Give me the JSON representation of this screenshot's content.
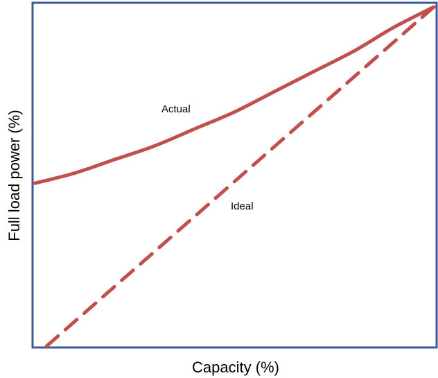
{
  "chart_data": {
    "type": "line",
    "title": "",
    "xlabel": "Capacity (%)",
    "ylabel": "Full load power (%)",
    "xlim": [
      0,
      100
    ],
    "ylim": [
      0,
      100
    ],
    "grid": false,
    "series": [
      {
        "name": "Actual",
        "style": "solid",
        "x": [
          0,
          10,
          20,
          30,
          40,
          50,
          60,
          70,
          80,
          90,
          100
        ],
        "y": [
          48,
          51,
          55,
          59,
          64,
          69,
          75,
          81,
          87,
          94,
          100
        ]
      },
      {
        "name": "Ideal",
        "style": "dashed",
        "x": [
          3,
          100
        ],
        "y": [
          0,
          100
        ]
      }
    ],
    "annotations": [
      {
        "text": "Actual",
        "x": 32,
        "y": 70
      },
      {
        "text": "Ideal",
        "x": 50,
        "y": 41
      }
    ],
    "line_color": "#c0504d"
  }
}
